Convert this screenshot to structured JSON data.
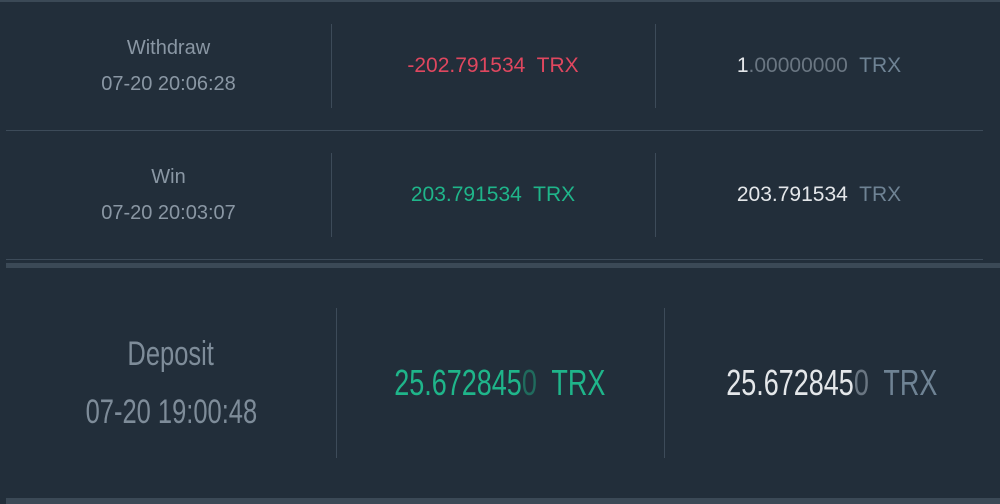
{
  "colors": {
    "background": "#222e3a",
    "negative": "#e0475f",
    "positive": "#1fb58a"
  },
  "rows": [
    {
      "type": "Withdraw",
      "time": "07-20 20:06:28",
      "amount": "-202.791534",
      "amount_unit": "TRX",
      "amount_sign": "negative",
      "balance_main": "1",
      "balance_rest": ".00000000",
      "balance_unit": "TRX"
    },
    {
      "type": "Win",
      "time": "07-20 20:03:07",
      "amount": "203.791534",
      "amount_unit": "TRX",
      "amount_sign": "positive",
      "balance_main": "203.791534",
      "balance_rest": "",
      "balance_unit": "TRX"
    },
    {
      "type": "Deposit",
      "time": "07-20 19:00:48",
      "amount_main": "25.672845",
      "amount_rest": "0",
      "amount_unit": "TRX",
      "amount_sign": "positive",
      "balance_main": "25.672845",
      "balance_rest": "0",
      "balance_unit": "TRX"
    }
  ]
}
